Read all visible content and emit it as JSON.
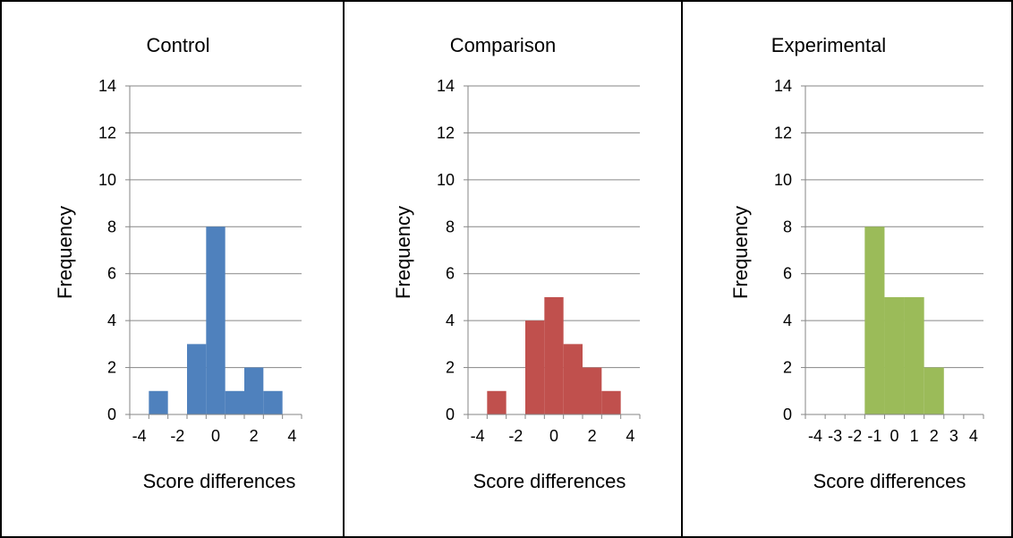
{
  "chart_data": [
    {
      "type": "histogram",
      "title": "Control",
      "xlabel": "Score differences",
      "ylabel": "Frequency",
      "xlim": [
        -4.5,
        4.5
      ],
      "ylim": [
        0,
        14
      ],
      "yticks": [
        0,
        2,
        4,
        6,
        8,
        10,
        12,
        14
      ],
      "xticks": [
        -4,
        -2,
        0,
        2,
        4
      ],
      "grid": true,
      "bar_color": "#4F81BD",
      "bins": [
        {
          "x": -3,
          "value": 1
        },
        {
          "x": -2,
          "value": 0
        },
        {
          "x": -1,
          "value": 3
        },
        {
          "x": 0,
          "value": 8
        },
        {
          "x": 1,
          "value": 1
        },
        {
          "x": 2,
          "value": 2
        },
        {
          "x": 3,
          "value": 1
        }
      ]
    },
    {
      "type": "histogram",
      "title": "Comparison",
      "xlabel": "Score differences",
      "ylabel": "Frequency",
      "xlim": [
        -4.5,
        4.5
      ],
      "ylim": [
        0,
        14
      ],
      "yticks": [
        0,
        2,
        4,
        6,
        8,
        10,
        12,
        14
      ],
      "xticks": [
        -4,
        -2,
        0,
        2,
        4
      ],
      "grid": true,
      "bar_color": "#C0504D",
      "bins": [
        {
          "x": -3,
          "value": 1
        },
        {
          "x": -2,
          "value": 0
        },
        {
          "x": -1,
          "value": 4
        },
        {
          "x": 0,
          "value": 5
        },
        {
          "x": 1,
          "value": 3
        },
        {
          "x": 2,
          "value": 2
        },
        {
          "x": 3,
          "value": 1
        }
      ]
    },
    {
      "type": "histogram",
      "title": "Experimental",
      "xlabel": "Score differences",
      "ylabel": "Frequency",
      "xlim": [
        -4.5,
        4.5
      ],
      "ylim": [
        0,
        14
      ],
      "yticks": [
        0,
        2,
        4,
        6,
        8,
        10,
        12,
        14
      ],
      "xticks": [
        -4,
        -3,
        -2,
        -1,
        0,
        1,
        2,
        3,
        4
      ],
      "grid": true,
      "bar_color": "#9BBB59",
      "bins": [
        {
          "x": -1,
          "value": 8
        },
        {
          "x": 0,
          "value": 5
        },
        {
          "x": 1,
          "value": 5
        },
        {
          "x": 2,
          "value": 2
        }
      ]
    }
  ]
}
